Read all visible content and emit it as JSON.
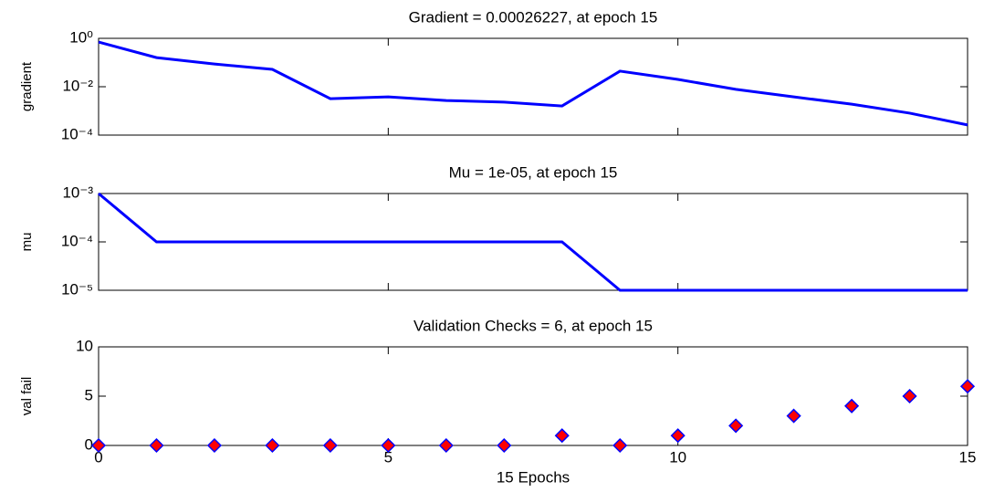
{
  "chart_data": [
    {
      "type": "line",
      "title": "Gradient = 0.00026227, at epoch 15",
      "ylabel": "gradient",
      "yscale": "log",
      "x": [
        0,
        1,
        2,
        3,
        4,
        5,
        6,
        7,
        8,
        9,
        10,
        11,
        12,
        13,
        14,
        15
      ],
      "values": [
        0.7,
        0.16,
        0.087,
        0.052,
        0.0032,
        0.0038,
        0.0027,
        0.0023,
        0.0016,
        0.044,
        0.02,
        0.0078,
        0.0038,
        0.0019,
        0.00081,
        0.00026227
      ],
      "color": "#0000ff",
      "xlim": [
        0,
        15
      ],
      "ylim": [
        0.0001,
        1
      ],
      "yticks": [
        {
          "value": 1,
          "label": "10⁰"
        },
        {
          "value": 0.01,
          "label": "10⁻²"
        },
        {
          "value": 0.0001,
          "label": "10⁻⁴"
        }
      ]
    },
    {
      "type": "line",
      "title": "Mu = 1e-05, at epoch 15",
      "ylabel": "mu",
      "yscale": "log",
      "x": [
        0,
        1,
        2,
        3,
        4,
        5,
        6,
        7,
        8,
        9,
        10,
        11,
        12,
        13,
        14,
        15
      ],
      "values": [
        0.001,
        0.0001,
        0.0001,
        0.0001,
        0.0001,
        0.0001,
        0.0001,
        0.0001,
        0.0001,
        1e-05,
        1e-05,
        1e-05,
        1e-05,
        1e-05,
        1e-05,
        1e-05
      ],
      "color": "#0000ff",
      "xlim": [
        0,
        15
      ],
      "ylim": [
        1e-05,
        0.001
      ],
      "yticks": [
        {
          "value": 0.001,
          "label": "10⁻³"
        },
        {
          "value": 0.0001,
          "label": "10⁻⁴"
        },
        {
          "value": 1e-05,
          "label": "10⁻⁵"
        }
      ]
    },
    {
      "type": "scatter",
      "title": "Validation Checks = 6, at epoch 15",
      "ylabel": "val fail",
      "xlabel": "15 Epochs",
      "x": [
        0,
        1,
        2,
        3,
        4,
        5,
        6,
        7,
        8,
        9,
        10,
        11,
        12,
        13,
        14,
        15
      ],
      "values": [
        0,
        0,
        0,
        0,
        0,
        0,
        0,
        0,
        1,
        0,
        1,
        2,
        3,
        4,
        5,
        6
      ],
      "color": "#ff0000",
      "edgecolor": "#0000ff",
      "marker": "diamond",
      "xlim": [
        0,
        15
      ],
      "ylim": [
        0,
        10
      ],
      "xticks": [
        0,
        5,
        10,
        15
      ],
      "yticks": [
        0,
        5,
        10
      ]
    }
  ]
}
